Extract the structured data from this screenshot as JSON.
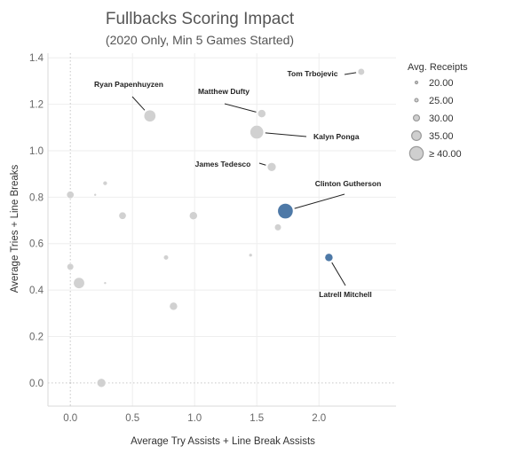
{
  "chart_data": {
    "type": "scatter",
    "title": "Fullbacks Scoring Impact",
    "subtitle": "(2020 Only, Min 5 Games Started)",
    "xlabel": "Average Try Assists + Line Break Assists",
    "ylabel": "Average Tries + Line Breaks",
    "xlim": [
      -0.18,
      2.62
    ],
    "ylim": [
      -0.1,
      1.42
    ],
    "x_ticks": [
      "0.0",
      "0.5",
      "1.0",
      "1.5",
      "2.0"
    ],
    "x_tick_values": [
      0,
      0.5,
      1.0,
      1.5,
      2.0
    ],
    "y_ticks": [
      "0.0",
      "0.2",
      "0.4",
      "0.6",
      "0.8",
      "1.0",
      "1.2",
      "1.4"
    ],
    "y_tick_values": [
      0,
      0.2,
      0.4,
      0.6,
      0.8,
      1.0,
      1.2,
      1.4
    ],
    "grid": true,
    "legend": {
      "title": "Avg. Receipts",
      "placement": "top-right",
      "entries": [
        {
          "label": "20.00",
          "value": 20
        },
        {
          "label": "25.00",
          "value": 25
        },
        {
          "label": "30.00",
          "value": 30
        },
        {
          "label": "35.00",
          "value": 35
        },
        {
          "label": "≥ 40.00",
          "value": 40
        }
      ]
    },
    "colors": {
      "grey": "#cfcfcf",
      "highlight": "#4e79a7"
    },
    "points": [
      {
        "x": 2.34,
        "y": 1.34,
        "size": 31,
        "highlight": false
      },
      {
        "x": 0.64,
        "y": 1.15,
        "size": 38,
        "highlight": false
      },
      {
        "x": 1.54,
        "y": 1.16,
        "size": 33,
        "highlight": false
      },
      {
        "x": 1.5,
        "y": 1.08,
        "size": 40,
        "highlight": false
      },
      {
        "x": 1.62,
        "y": 0.93,
        "size": 34,
        "highlight": false
      },
      {
        "x": 0.28,
        "y": 0.86,
        "size": 27,
        "highlight": false
      },
      {
        "x": 0.0,
        "y": 0.81,
        "size": 32,
        "highlight": false
      },
      {
        "x": 0.2,
        "y": 0.81,
        "size": 18,
        "highlight": false
      },
      {
        "x": 0.42,
        "y": 0.72,
        "size": 32,
        "highlight": false
      },
      {
        "x": 0.99,
        "y": 0.72,
        "size": 33,
        "highlight": false
      },
      {
        "x": 1.73,
        "y": 0.74,
        "size": 42,
        "highlight": true
      },
      {
        "x": 1.67,
        "y": 0.67,
        "size": 31,
        "highlight": false
      },
      {
        "x": 2.08,
        "y": 0.54,
        "size": 33,
        "highlight": true
      },
      {
        "x": 0.77,
        "y": 0.54,
        "size": 28,
        "highlight": false
      },
      {
        "x": 1.45,
        "y": 0.55,
        "size": 25,
        "highlight": false
      },
      {
        "x": 0.0,
        "y": 0.5,
        "size": 31,
        "highlight": false
      },
      {
        "x": 0.07,
        "y": 0.43,
        "size": 37,
        "highlight": false
      },
      {
        "x": 0.28,
        "y": 0.43,
        "size": 22,
        "highlight": false
      },
      {
        "x": 0.83,
        "y": 0.33,
        "size": 33,
        "highlight": false
      },
      {
        "x": 0.0,
        "y": 0.0,
        "size": 23,
        "highlight": false
      },
      {
        "x": 0.25,
        "y": 0.0,
        "size": 34,
        "highlight": false
      }
    ],
    "annotations": [
      {
        "text": "Tom Trbojevic",
        "point": 0
      },
      {
        "text": "Ryan Papenhuyzen",
        "point": 1
      },
      {
        "text": "Matthew Dufty",
        "point": 2
      },
      {
        "text": "Kalyn Ponga",
        "point": 3
      },
      {
        "text": "James Tedesco",
        "point": 4
      },
      {
        "text": "Clinton Gutherson",
        "point": 10
      },
      {
        "text": "Latrell Mitchell",
        "point": 12
      }
    ]
  }
}
